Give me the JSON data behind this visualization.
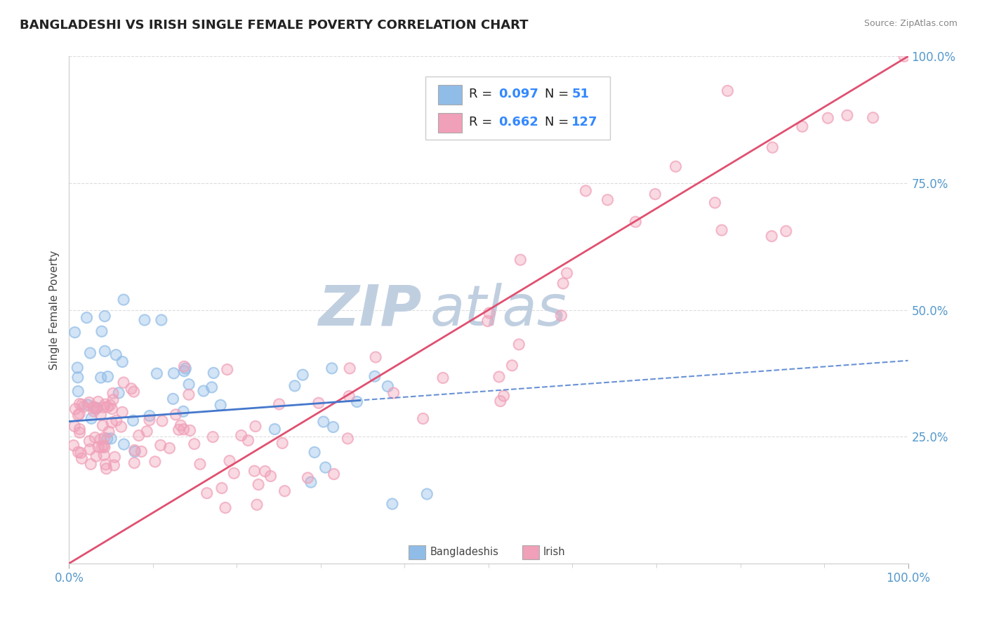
{
  "title": "BANGLADESHI VS IRISH SINGLE FEMALE POVERTY CORRELATION CHART",
  "source_text": "Source: ZipAtlas.com",
  "ylabel": "Single Female Poverty",
  "color_bangladeshi": "#90bce8",
  "color_irish": "#f0a0b8",
  "color_trend_bangladeshi": "#4477cc",
  "color_trend_irish": "#e05070",
  "color_title": "#222222",
  "color_legend_text_black": "#222222",
  "color_legend_text_blue": "#3388ff",
  "watermark_zip_color": "#c0cfe0",
  "watermark_atlas_color": "#c0cfe0",
  "background_color": "#ffffff",
  "grid_color": "#dddddd",
  "grid_style": "--",
  "right_tick_color": "#5599cc",
  "bottom_tick_color": "#5599cc"
}
